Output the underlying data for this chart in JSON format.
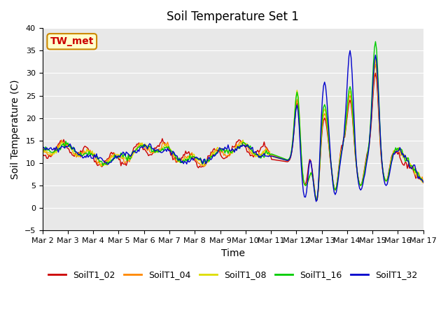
{
  "title": "Soil Temperature Set 1",
  "xlabel": "Time",
  "ylabel": "Soil Temperature (C)",
  "ylim": [
    -5,
    40
  ],
  "yticks": [
    -5,
    0,
    5,
    10,
    15,
    20,
    25,
    30,
    35,
    40
  ],
  "series_colors": {
    "SoilT1_02": "#cc0000",
    "SoilT1_04": "#ff8800",
    "SoilT1_08": "#dddd00",
    "SoilT1_16": "#00cc00",
    "SoilT1_32": "#0000cc"
  },
  "annotation_text": "TW_met",
  "annotation_color": "#cc0000",
  "annotation_bg": "#ffffcc",
  "annotation_border": "#cc8800",
  "background_color": "#e8e8e8",
  "xtick_labels": [
    "Mar 2",
    "Mar 3",
    "Mar 4",
    "Mar 5",
    "Mar 6",
    "Mar 7",
    "Mar 8",
    "Mar 9",
    "Mar 10",
    "Mar 11",
    "Mar 12",
    "Mar 13",
    "Mar 14",
    "Mar 15",
    "Mar 16",
    "Mar 17"
  ],
  "n_days": 15,
  "points_per_day": 24
}
